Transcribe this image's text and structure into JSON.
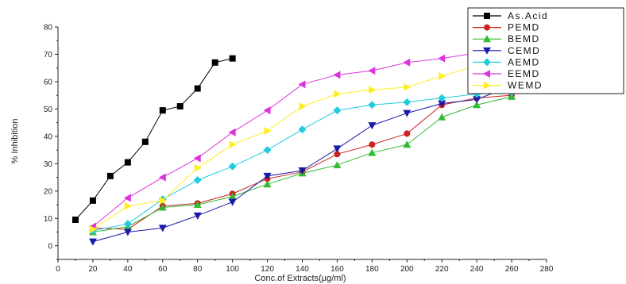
{
  "chart_data": {
    "type": "scatter",
    "title": "",
    "xlabel": "Conc.of Extracts(µg/ml)",
    "ylabel": "% Inhibition",
    "xlim": [
      0,
      280
    ],
    "ylim": [
      -5,
      80
    ],
    "xticks": [
      0,
      20,
      40,
      60,
      80,
      100,
      120,
      140,
      160,
      180,
      200,
      220,
      240,
      260,
      280
    ],
    "yticks": [
      0,
      10,
      20,
      30,
      40,
      50,
      60,
      70,
      80
    ],
    "grid": false,
    "legend_position": "top-right",
    "series": [
      {
        "name": "As.Acid",
        "color": "#000000",
        "marker": "square",
        "line": true,
        "x": [
          10,
          20,
          30,
          40,
          50,
          60,
          70,
          80,
          90,
          100
        ],
        "y": [
          9.5,
          16.5,
          25.5,
          30.5,
          38,
          49.5,
          51,
          57.5,
          67,
          68.5
        ]
      },
      {
        "name": "PEMD",
        "color": "#cc2222",
        "marker": "circle",
        "line": true,
        "x": [
          20,
          40,
          60,
          80,
          100,
          120,
          140,
          160,
          180,
          200,
          220,
          240,
          260
        ],
        "y": [
          6.5,
          6,
          14.5,
          15.5,
          19,
          24.5,
          27,
          33.5,
          37,
          41,
          51.5,
          54,
          55
        ]
      },
      {
        "name": "BEMD",
        "color": "#33bb33",
        "marker": "triangle-up",
        "line": true,
        "x": [
          20,
          40,
          60,
          80,
          100,
          120,
          140,
          160,
          180,
          200,
          220,
          240,
          260
        ],
        "y": [
          5,
          7,
          14,
          15,
          18,
          22.5,
          26.5,
          29.5,
          34,
          37,
          47,
          51.5,
          54.5
        ]
      },
      {
        "name": "CEMD",
        "color": "#1a1aa8",
        "marker": "triangle-down",
        "line": true,
        "x": [
          20,
          40,
          60,
          80,
          100,
          120,
          140,
          160,
          180,
          200,
          220,
          240,
          260
        ],
        "y": [
          1.5,
          5,
          6.5,
          11,
          16,
          25.5,
          27.5,
          35.5,
          44,
          48.5,
          52,
          53.5,
          58.5
        ]
      },
      {
        "name": "AEMD",
        "color": "#22ccdd",
        "marker": "diamond",
        "line": true,
        "x": [
          20,
          40,
          60,
          80,
          100,
          120,
          140,
          160,
          180,
          200,
          220,
          240,
          260
        ],
        "y": [
          5.5,
          8,
          17,
          24,
          29,
          35,
          42.5,
          49.5,
          51.5,
          52.5,
          54,
          55.5,
          56
        ]
      },
      {
        "name": "EEMD",
        "color": "#dd33dd",
        "marker": "triangle-left",
        "line": true,
        "x": [
          20,
          40,
          60,
          80,
          100,
          120,
          140,
          160,
          180,
          200,
          220,
          240,
          260
        ],
        "y": [
          7,
          17.5,
          25,
          32,
          41.5,
          49.5,
          59,
          62.5,
          64,
          67,
          68.5,
          70.5,
          72.5
        ]
      },
      {
        "name": "WEMD",
        "color": "#ffee22",
        "marker": "triangle-right",
        "line": true,
        "x": [
          20,
          40,
          60,
          80,
          100,
          120,
          140,
          160,
          180,
          200,
          220,
          240,
          260
        ],
        "y": [
          6,
          14.5,
          16.5,
          28.5,
          37,
          42,
          51,
          55.5,
          57,
          58,
          62,
          66,
          66.5
        ]
      }
    ]
  }
}
